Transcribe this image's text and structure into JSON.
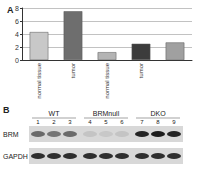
{
  "chart_data": {
    "type": "bar",
    "title": "A",
    "categories": [
      "normal tissue",
      "tumor",
      "normal tissue",
      "tumor",
      null
    ],
    "values": [
      4.3,
      7.5,
      1.2,
      2.5,
      2.7
    ],
    "colors": [
      "#c8c8c8",
      "#6e6e6e",
      "#b4b4b4",
      "#3c3c3c",
      "#a0a0a0"
    ],
    "ylim": [
      0,
      8
    ],
    "yticks": [
      0,
      2,
      4,
      6,
      8
    ],
    "grid": true
  },
  "blot": {
    "title": "B",
    "groups": [
      {
        "label": "WT",
        "lanes": [
          "1",
          "2",
          "3"
        ]
      },
      {
        "label": "BRMnull",
        "lanes": [
          "4",
          "5",
          "6"
        ]
      },
      {
        "label": "DKO",
        "lanes": [
          "7",
          "8",
          "9"
        ]
      }
    ],
    "rows": [
      {
        "label": "BRM",
        "intensity": [
          0.55,
          0.5,
          0.55,
          0.1,
          0.08,
          0.1,
          0.9,
          0.95,
          0.9
        ]
      },
      {
        "label": "GAPDH",
        "intensity": [
          0.85,
          0.85,
          0.85,
          0.85,
          0.85,
          0.85,
          0.85,
          0.85,
          0.85
        ]
      }
    ]
  }
}
